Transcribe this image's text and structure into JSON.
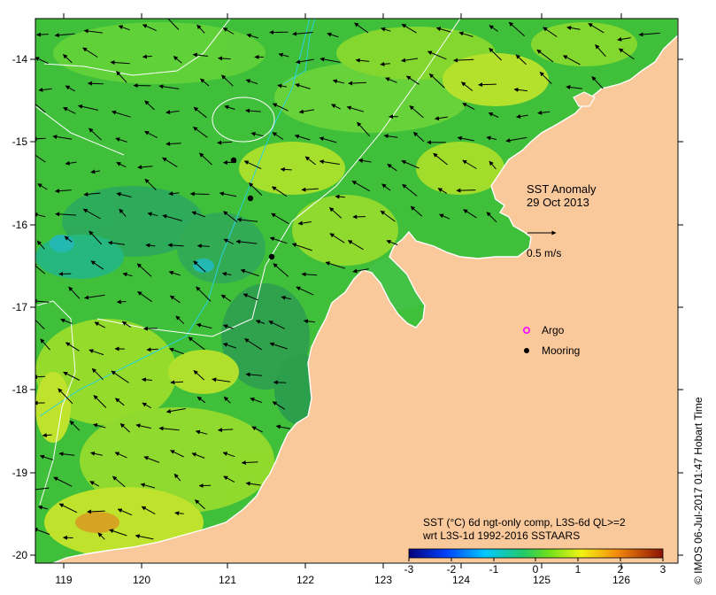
{
  "map": {
    "lon_ticks": [
      "119",
      "120",
      "121",
      "122",
      "123",
      "124",
      "125",
      "126"
    ],
    "lat_ticks": [
      "-14",
      "-15",
      "-16",
      "-17",
      "-18",
      "-19",
      "-20"
    ],
    "title_line1": "SST Anomaly",
    "title_line2": "29 Oct 2013",
    "velocity_scale_label": "0.5 m/s",
    "legend": {
      "argo": "Argo",
      "mooring": "Mooring"
    },
    "colorbar": {
      "caption_line1": "SST (°C) 6d ngt-only comp, L3S-6d QL>=2",
      "caption_line2": "wrt L3S-1d 1992-2016 SSTAARS",
      "ticks": [
        "-3",
        "-2",
        "-1",
        "0",
        "1",
        "2",
        "3"
      ]
    },
    "credit": "© IMOS 06-Jul-2017 01:47 Hobart Time",
    "colors": {
      "land": "#f9c89b",
      "ocean_base": "#3fbf3a",
      "isobath_shallow": "#27d3e0",
      "isobath_deep": "#ffffff"
    },
    "moorings_count": 3
  }
}
